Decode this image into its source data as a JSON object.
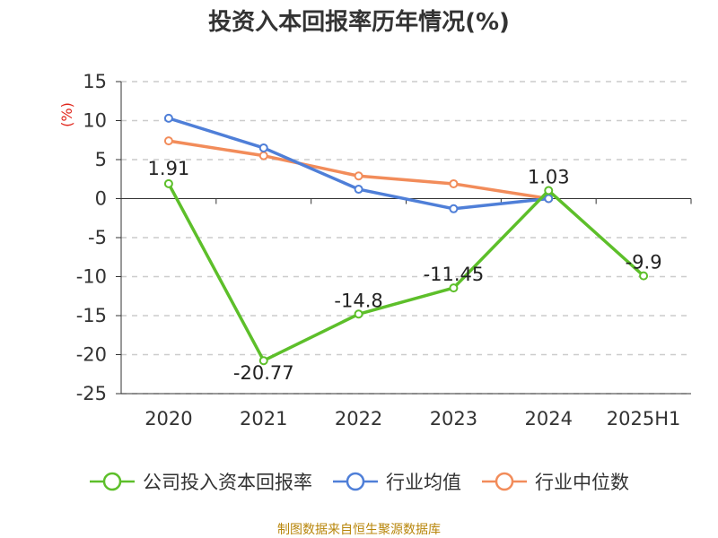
{
  "title": "投资入本回报率历年情况(%)",
  "source": "制图数据来自恒生聚源数据库",
  "colors": {
    "company": "#5dbf2a",
    "industry_avg": "#4f7fd8",
    "industry_median": "#f28c5a",
    "ylabel": "#e0251b",
    "source": "#b8860b"
  },
  "chart_data": {
    "type": "line",
    "title": "投资入本回报率历年情况(%)",
    "ylabel": "(%)",
    "xlabel": "",
    "categories": [
      "2020",
      "2021",
      "2022",
      "2023",
      "2024",
      "2025H1"
    ],
    "ylim": [
      -25,
      15
    ],
    "yticks": [
      15,
      10,
      5,
      0,
      -5,
      -10,
      -15,
      -20,
      -25
    ],
    "grid": "horizontal dashed",
    "legend_position": "bottom",
    "series": [
      {
        "name": "公司投入资本回报率",
        "color": "#5dbf2a",
        "values": [
          1.91,
          -20.77,
          -14.8,
          -11.45,
          1.03,
          -9.9
        ],
        "labels": [
          "1.91",
          "-20.77",
          "-14.8",
          "-11.45",
          "1.03",
          "-9.9"
        ]
      },
      {
        "name": "行业均值",
        "color": "#4f7fd8",
        "values": [
          10.3,
          6.5,
          1.2,
          -1.3,
          0,
          null
        ]
      },
      {
        "name": "行业中位数",
        "color": "#f28c5a",
        "values": [
          7.4,
          5.5,
          2.9,
          1.9,
          0,
          null
        ]
      }
    ]
  }
}
